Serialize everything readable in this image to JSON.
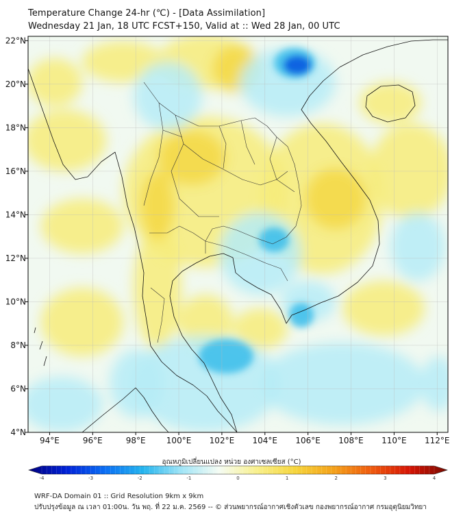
{
  "header": {
    "title": "Temperature Change 24-hr (℃) - [Data Assimilation]",
    "subtitle": "Wednesday 21 Jan, 18 UTC FCST+150, Valid at :: Wed 28 Jan, 00 UTC"
  },
  "map": {
    "lon_range": [
      93,
      112.5
    ],
    "lat_range": [
      4,
      22.2
    ],
    "lon_ticks": [
      {
        "value": 94,
        "label": "94°E"
      },
      {
        "value": 96,
        "label": "96°E"
      },
      {
        "value": 98,
        "label": "98°E"
      },
      {
        "value": 100,
        "label": "100°E"
      },
      {
        "value": 102,
        "label": "102°E"
      },
      {
        "value": 104,
        "label": "104°E"
      },
      {
        "value": 106,
        "label": "106°E"
      },
      {
        "value": 108,
        "label": "108°E"
      },
      {
        "value": 110,
        "label": "110°E"
      },
      {
        "value": 112,
        "label": "112°E"
      }
    ],
    "lat_ticks": [
      {
        "value": 22,
        "label": "22°N"
      },
      {
        "value": 20,
        "label": "20°N"
      },
      {
        "value": 18,
        "label": "18°N"
      },
      {
        "value": 16,
        "label": "16°N"
      },
      {
        "value": 14,
        "label": "14°N"
      },
      {
        "value": 12,
        "label": "12°N"
      },
      {
        "value": 10,
        "label": "10°N"
      },
      {
        "value": 8,
        "label": "8°N"
      },
      {
        "value": 6,
        "label": "6°N"
      },
      {
        "value": 4,
        "label": "4°N"
      }
    ],
    "grid": true,
    "colors": {
      "warm": "#f7ec7a",
      "warm_strong": "#f3d43a",
      "cool": "#b6ecf7",
      "cool_strong": "#31b9ea",
      "cold": "#0a5fe0",
      "neutral": "#f1f9f1",
      "coast": "#111111",
      "border": "#333333"
    }
  },
  "colorbar": {
    "title": "อุณหภูมิเปลี่ยนแปลง หน่วย องศาเซลเซียส (°C)",
    "min": -4,
    "max": 4,
    "tick_labels": [
      {
        "value": -4,
        "label": "-4"
      },
      {
        "value": -3,
        "label": "-3"
      },
      {
        "value": -2,
        "label": "-2"
      },
      {
        "value": -1,
        "label": "-1"
      },
      {
        "value": 0,
        "label": "0"
      },
      {
        "value": 1,
        "label": "1"
      },
      {
        "value": 2,
        "label": "2"
      },
      {
        "value": 3,
        "label": "3"
      },
      {
        "value": 4,
        "label": "4"
      }
    ],
    "stops": [
      "#00007f",
      "#0022d8",
      "#0a6ef4",
      "#24b4ee",
      "#9fe4f6",
      "#f5fcf4",
      "#f8f08c",
      "#f6d53c",
      "#f4a21a",
      "#ef5b0e",
      "#d61404",
      "#7a0a00"
    ]
  },
  "footer": {
    "line1": "WRF-DA Domain 01 :: Grid Resolution 9km x 9km",
    "line2": "ปรับปรุงข้อมูล ณ เวลา 01:00น. วัน พฤ. ที่ 22 ม.ค. 2569 -- © ส่วนพยากรณ์อากาศเชิงตัวเลข กองพยากรณ์อากาศ กรมอุตุนิยมวิทยา"
  }
}
